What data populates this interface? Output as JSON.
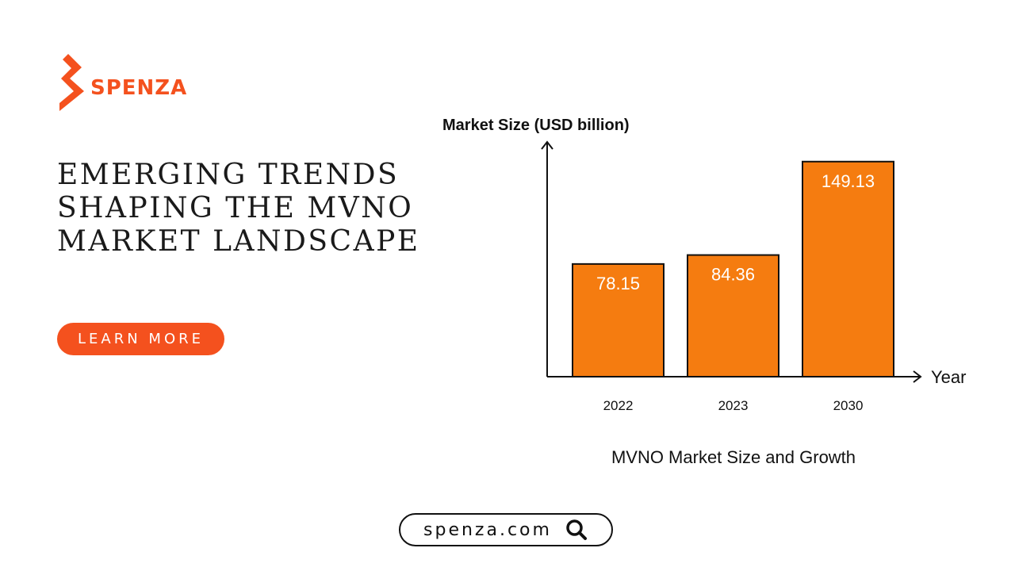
{
  "brand": {
    "name": "SPENZA",
    "color": "#f4511e"
  },
  "headline": {
    "lines": [
      "EMERGING TRENDS",
      "SHAPING THE MVNO",
      "MARKET LANDSCAPE"
    ]
  },
  "cta": {
    "label": "LEARN MORE",
    "color": "#f4511e"
  },
  "footer": {
    "url": "spenza.com",
    "icon": "search-icon"
  },
  "chart_data": {
    "type": "bar",
    "categories": [
      "2022",
      "2023",
      "2030"
    ],
    "values": [
      78.15,
      84.36,
      149.13
    ],
    "data_labels": [
      "78.15",
      "84.36",
      "149.13"
    ],
    "title": "MVNO Market Size and Growth",
    "ylabel": "Market Size (USD billion)",
    "xlabel": "Year",
    "ylim": [
      0,
      160
    ],
    "grid": false,
    "legend": "none",
    "bar_color": "#f57c10"
  }
}
